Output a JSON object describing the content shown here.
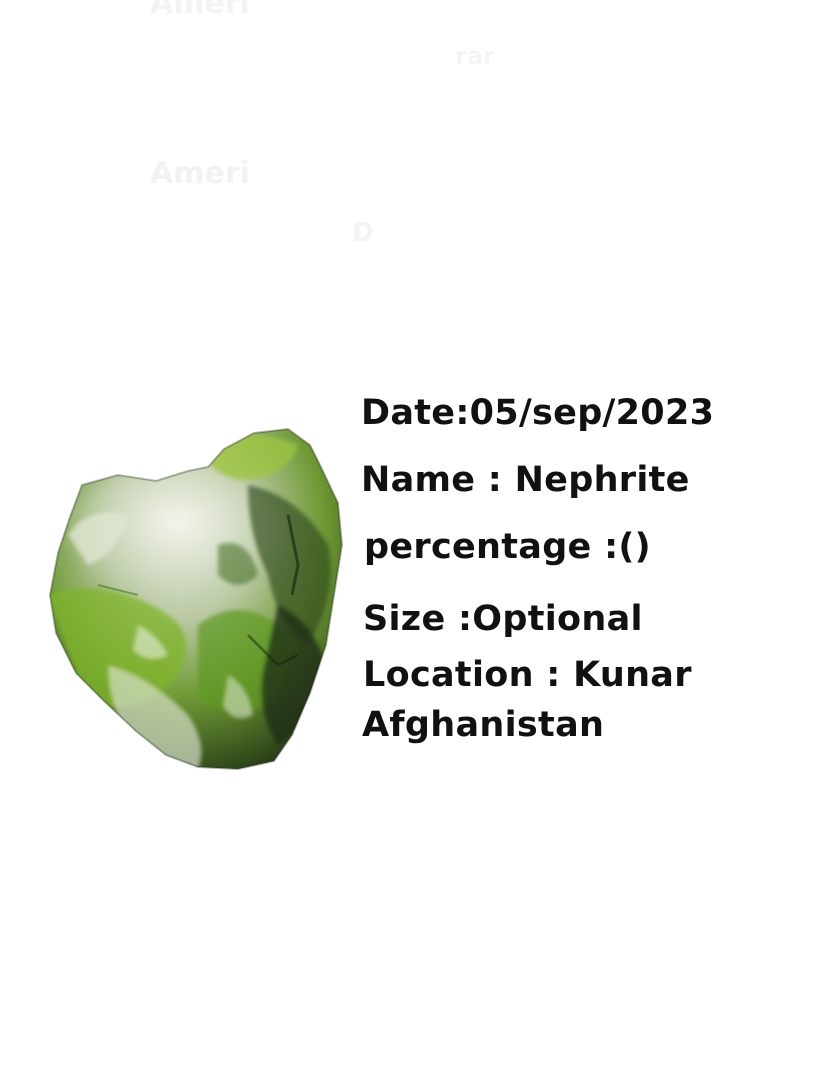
{
  "background_ghost_text": {
    "fragment_1": "Ameri",
    "fragment_2": "",
    "fragment_3": "rar",
    "fragment_4": "Ameri",
    "fragment_5": "",
    "fragment_6": "D"
  },
  "image": {
    "subject": "Nephrite stone",
    "colors": {
      "light": "#dfe6d2",
      "mid": "#8bbf3c",
      "dark": "#2f4a1c",
      "bright": "#6fbf1f",
      "shadow": "#1d2a14"
    }
  },
  "info": {
    "date": "Date:05/sep/2023",
    "name": "Name : Nephrite",
    "percentage": "percentage :()",
    "size": "Size :Optional",
    "location_line1": "Location : Kunar",
    "location_line2": "Afghanistan"
  },
  "colors": {
    "text": "#111111",
    "background": "#ffffff"
  }
}
